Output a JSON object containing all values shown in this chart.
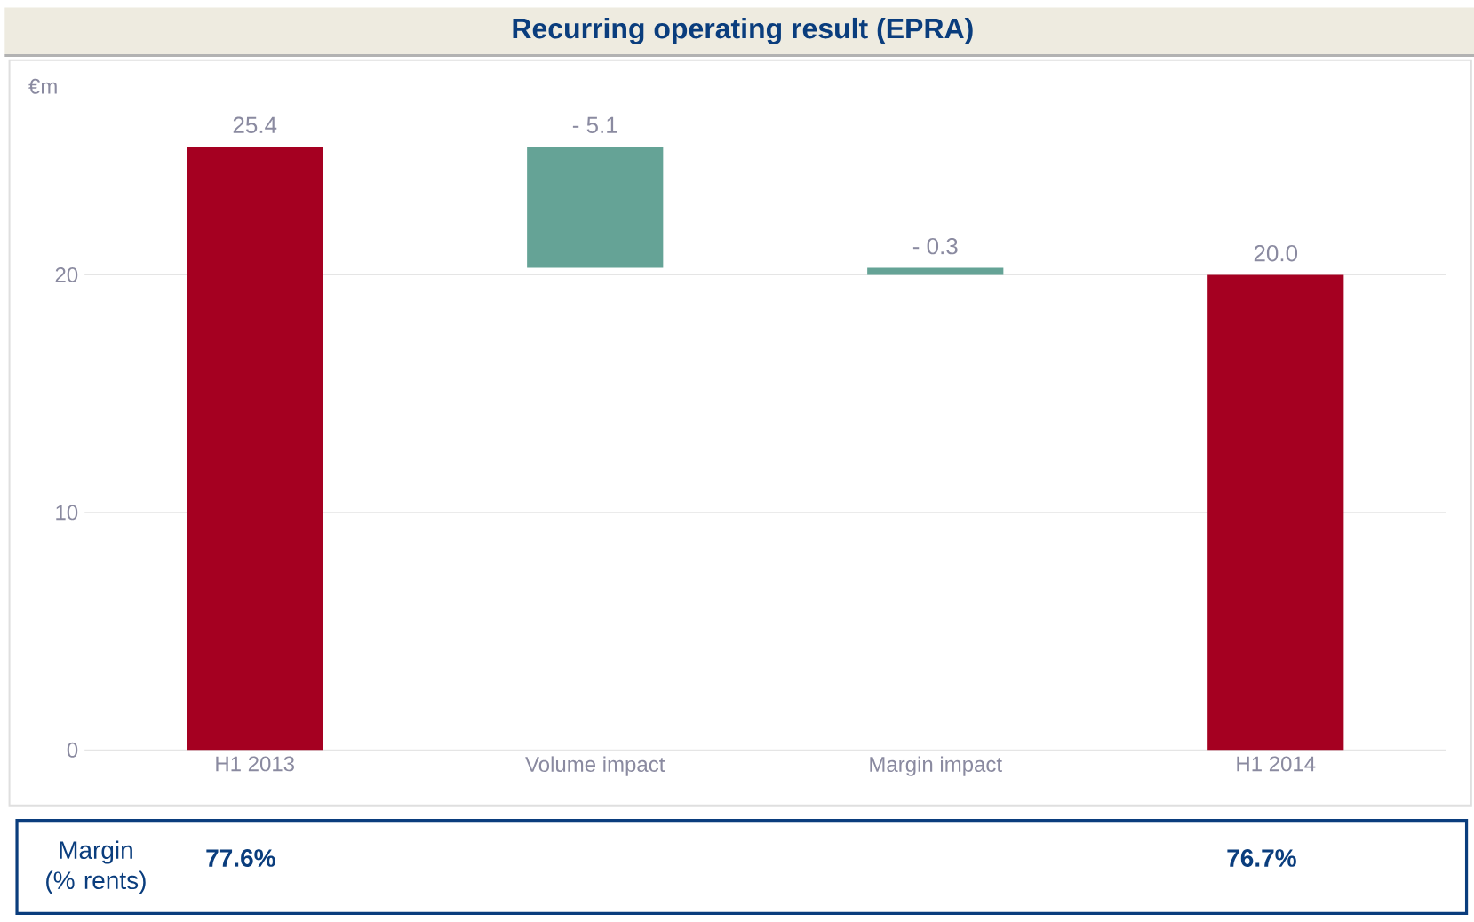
{
  "chart_data": {
    "type": "bar",
    "title": "Recurring operating result (EPRA)",
    "ylabel": "€m",
    "categories": [
      "H1 2013",
      "Volume impact",
      "Margin impact",
      "H1 2014"
    ],
    "values": [
      25.4,
      -5.1,
      -0.3,
      20.0
    ],
    "base": [
      0,
      25.4,
      20.3,
      0
    ],
    "colors": [
      "#a50021",
      "#65a396",
      "#65a396",
      "#a50021"
    ],
    "value_labels": [
      "25.4",
      "- 5.1",
      "- 0.3",
      "20.0"
    ],
    "ylim": [
      0,
      29
    ],
    "yticks": [
      0,
      10,
      20
    ],
    "grid": "y",
    "annotations": [
      "Margin (% rents)",
      "77.6%",
      "76.7%"
    ]
  }
}
